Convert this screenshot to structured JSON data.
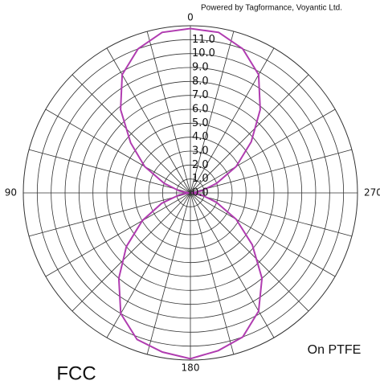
{
  "chart_data": {
    "type": "polar",
    "credit": "Powered by Tagformance, Voyantic Ltd.",
    "annotation": "On PTFE",
    "label": "FCC",
    "theta": [
      0,
      10,
      20,
      30,
      40,
      50,
      60,
      70,
      80,
      90,
      100,
      110,
      120,
      130,
      140,
      150,
      160,
      170,
      180,
      190,
      200,
      210,
      220,
      230,
      240,
      250,
      260,
      270,
      280,
      290,
      300,
      310,
      320,
      330,
      340,
      350
    ],
    "values": [
      11.8,
      11.7,
      11.0,
      9.8,
      7.8,
      5.6,
      3.8,
      2.0,
      0.8,
      0.1,
      0.8,
      2.2,
      4.0,
      6.0,
      8.0,
      10.0,
      11.2,
      11.6,
      11.9,
      11.5,
      11.0,
      9.8,
      8.0,
      5.8,
      3.8,
      2.0,
      0.8,
      0.1,
      0.8,
      2.0,
      3.8,
      5.7,
      7.8,
      9.8,
      11.0,
      11.7
    ],
    "color": "#b03cb0",
    "rlim": [
      0,
      12
    ],
    "rticks": [
      {
        "value": 0,
        "label": "0.0"
      },
      {
        "value": 1,
        "label": "1.0"
      },
      {
        "value": 2,
        "label": "2.0"
      },
      {
        "value": 3,
        "label": "3.0"
      },
      {
        "value": 4,
        "label": "4.0"
      },
      {
        "value": 5,
        "label": "5.0"
      },
      {
        "value": 6,
        "label": "6.0"
      },
      {
        "value": 7,
        "label": "7.0"
      },
      {
        "value": 8,
        "label": "8.0"
      },
      {
        "value": 9,
        "label": "9.0"
      },
      {
        "value": 10,
        "label": "10.0"
      },
      {
        "value": 11,
        "label": "11.0"
      }
    ],
    "thetaticks": [
      0,
      90,
      180,
      270
    ],
    "theta_grid": [
      0,
      15,
      30,
      45,
      60,
      75,
      90,
      105,
      120,
      135,
      150,
      165,
      180,
      195,
      210,
      225,
      240,
      255,
      270,
      285,
      300,
      315,
      330,
      345
    ]
  }
}
